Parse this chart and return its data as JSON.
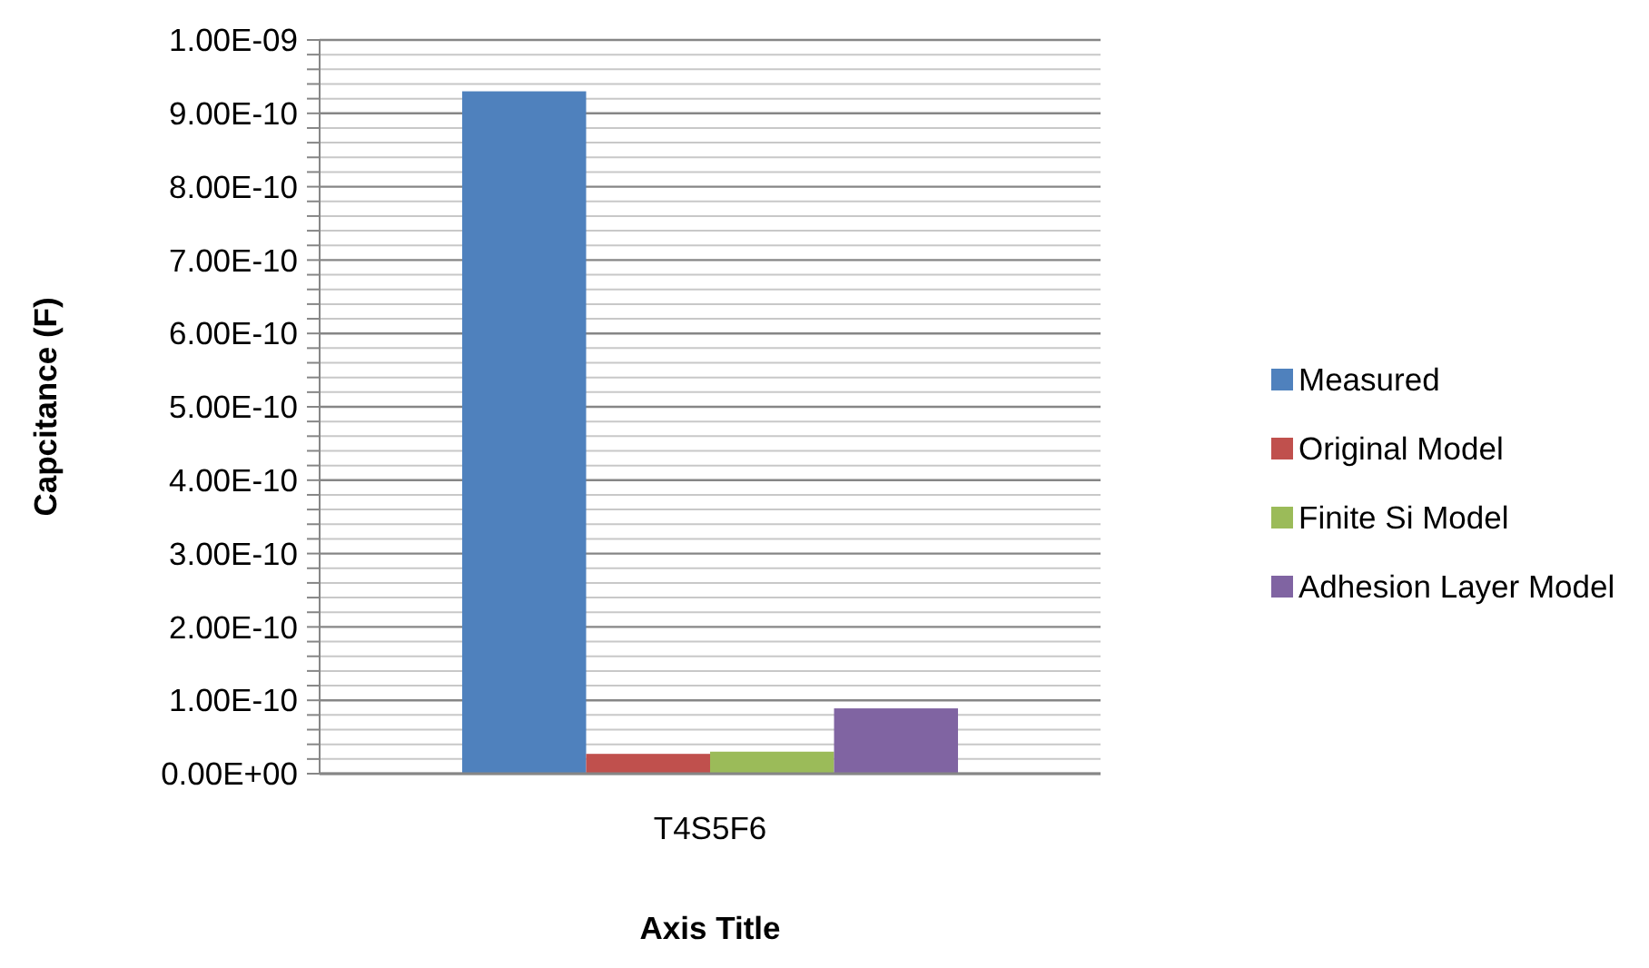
{
  "chart_data": {
    "type": "bar",
    "xlabel": "Axis Title",
    "ylabel": "Capcitance (F)",
    "categories": [
      "T4S5F6"
    ],
    "series": [
      {
        "name": "Measured",
        "color": "#4f81bd",
        "values": [
          9.3e-10
        ]
      },
      {
        "name": "Original Model",
        "color": "#c0504d",
        "values": [
          2.7e-11
        ]
      },
      {
        "name": "Finite Si Model",
        "color": "#9bbb59",
        "values": [
          3e-11
        ]
      },
      {
        "name": "Adhesion Layer Model",
        "color": "#8064a2",
        "values": [
          8.9e-11
        ]
      }
    ],
    "ylim": [
      0,
      1e-09
    ],
    "yticks": [
      {
        "value": 0,
        "label": "0.00E+00"
      },
      {
        "value": 2e-11,
        "label": null
      },
      {
        "value": 4e-11,
        "label": null
      },
      {
        "value": 6e-11,
        "label": null
      },
      {
        "value": 8e-11,
        "label": null
      },
      {
        "value": 1e-10,
        "label": "1.00E-10"
      },
      {
        "value": 1.2e-10,
        "label": null
      },
      {
        "value": 1.4e-10,
        "label": null
      },
      {
        "value": 1.6e-10,
        "label": null
      },
      {
        "value": 1.8e-10,
        "label": null
      },
      {
        "value": 2e-10,
        "label": "2.00E-10"
      },
      {
        "value": 2.2e-10,
        "label": null
      },
      {
        "value": 2.4e-10,
        "label": null
      },
      {
        "value": 2.6e-10,
        "label": null
      },
      {
        "value": 2.8e-10,
        "label": null
      },
      {
        "value": 3e-10,
        "label": "3.00E-10"
      },
      {
        "value": 3.2e-10,
        "label": null
      },
      {
        "value": 3.4e-10,
        "label": null
      },
      {
        "value": 3.6e-10,
        "label": null
      },
      {
        "value": 3.8e-10,
        "label": null
      },
      {
        "value": 4e-10,
        "label": "4.00E-10"
      },
      {
        "value": 4.2e-10,
        "label": null
      },
      {
        "value": 4.4e-10,
        "label": null
      },
      {
        "value": 4.6e-10,
        "label": null
      },
      {
        "value": 4.8e-10,
        "label": null
      },
      {
        "value": 5e-10,
        "label": "5.00E-10"
      },
      {
        "value": 5.2e-10,
        "label": null
      },
      {
        "value": 5.4e-10,
        "label": null
      },
      {
        "value": 5.6e-10,
        "label": null
      },
      {
        "value": 5.8e-10,
        "label": null
      },
      {
        "value": 6e-10,
        "label": "6.00E-10"
      },
      {
        "value": 6.2e-10,
        "label": null
      },
      {
        "value": 6.4e-10,
        "label": null
      },
      {
        "value": 6.6e-10,
        "label": null
      },
      {
        "value": 6.8e-10,
        "label": null
      },
      {
        "value": 7e-10,
        "label": "7.00E-10"
      },
      {
        "value": 7.2e-10,
        "label": null
      },
      {
        "value": 7.4e-10,
        "label": null
      },
      {
        "value": 7.6e-10,
        "label": null
      },
      {
        "value": 7.8e-10,
        "label": null
      },
      {
        "value": 8e-10,
        "label": "8.00E-10"
      },
      {
        "value": 8.2e-10,
        "label": null
      },
      {
        "value": 8.4e-10,
        "label": null
      },
      {
        "value": 8.6e-10,
        "label": null
      },
      {
        "value": 8.8e-10,
        "label": null
      },
      {
        "value": 9e-10,
        "label": "9.00E-10"
      },
      {
        "value": 9.2e-10,
        "label": null
      },
      {
        "value": 9.4e-10,
        "label": null
      },
      {
        "value": 9.6e-10,
        "label": null
      },
      {
        "value": 9.8e-10,
        "label": null
      },
      {
        "value": 1e-09,
        "label": "1.00E-09"
      }
    ],
    "grid": true,
    "legend": "right"
  }
}
